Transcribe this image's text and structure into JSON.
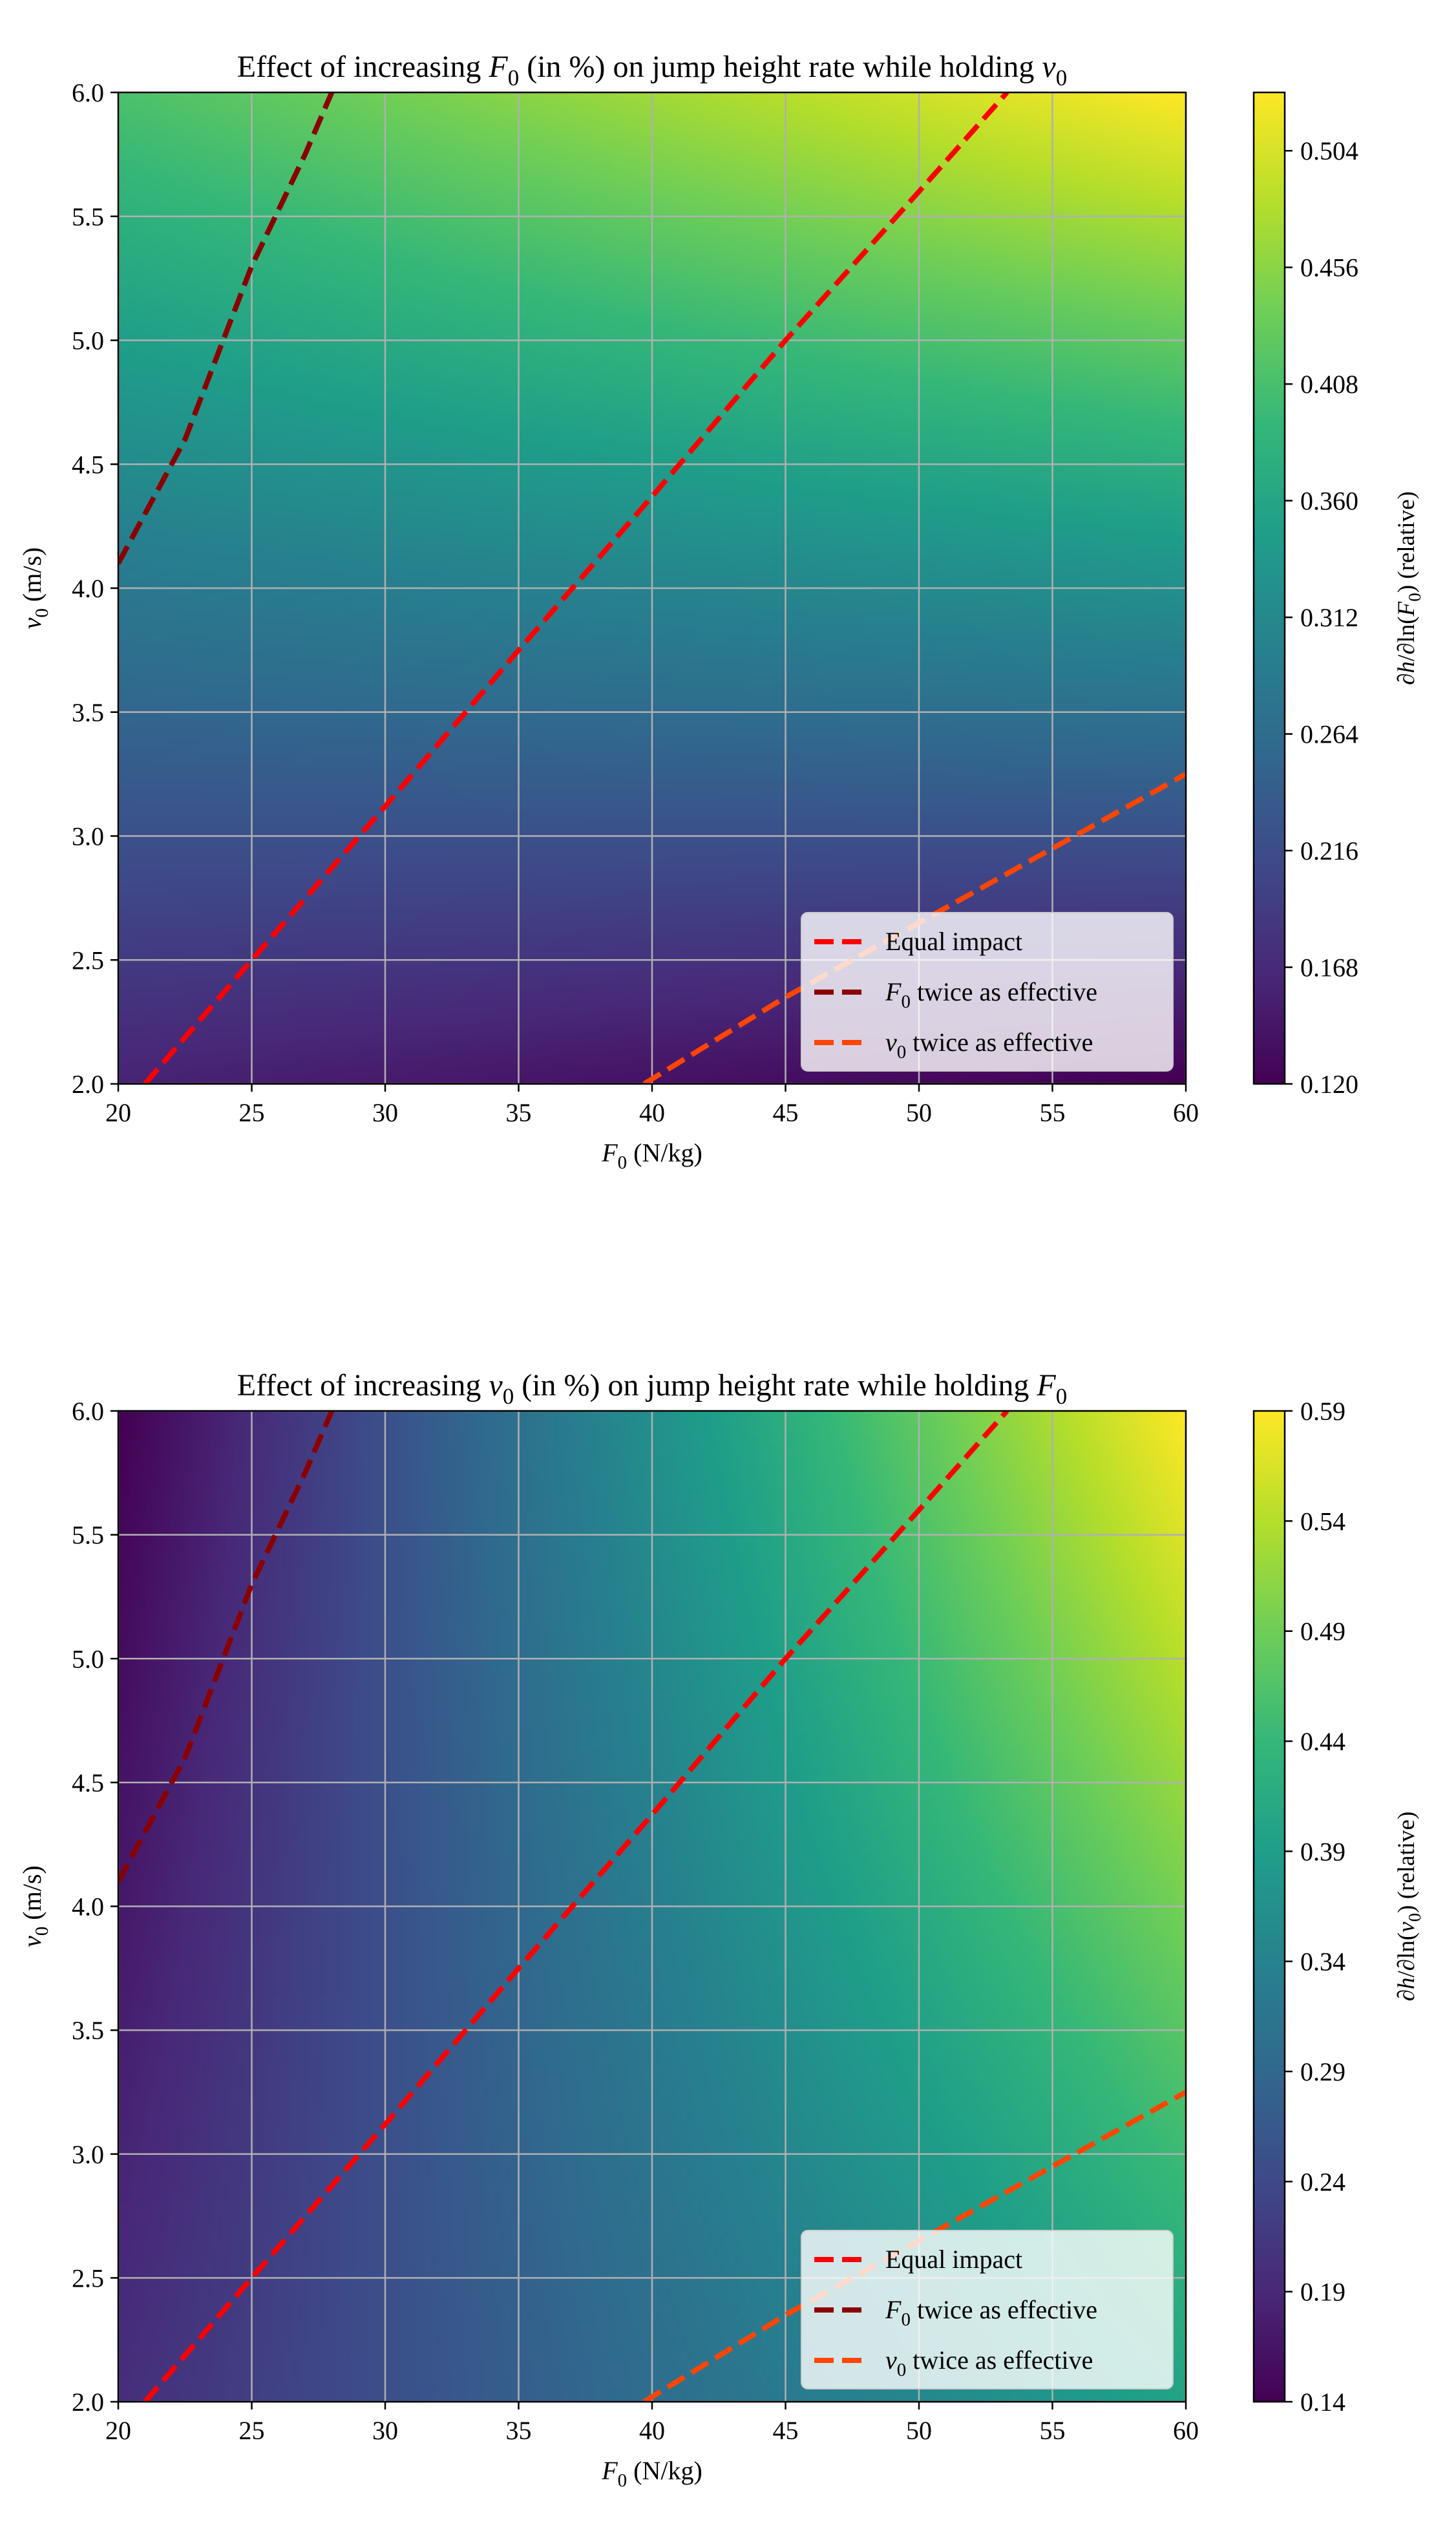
{
  "chart_data": [
    {
      "type": "heatmap",
      "title": "Effect of increasing F0 (in %) on jump height rate while holding v0",
      "title_parts": [
        "Effect of increasing ",
        "F",
        "0",
        " (in %) on jump height rate while holding ",
        "v",
        "0"
      ],
      "xlabel": "F0 (N/kg)",
      "xlabel_parts": [
        "F",
        "0",
        " (N/kg)"
      ],
      "ylabel": "v0 (m/s)",
      "ylabel_parts": [
        "v",
        "0",
        " (m/s)"
      ],
      "colorbar_label": "∂h/∂ln(F0) (relative)",
      "colorbar_parts": [
        "∂",
        "h",
        "/∂ln(",
        "F",
        "0",
        ") (relative)"
      ],
      "xlim": [
        20,
        60
      ],
      "ylim": [
        2.0,
        6.0
      ],
      "xticks": [
        "20",
        "25",
        "30",
        "35",
        "40",
        "45",
        "50",
        "55",
        "60"
      ],
      "yticks": [
        "2.0",
        "2.5",
        "3.0",
        "3.5",
        "4.0",
        "4.5",
        "5.0",
        "5.5",
        "6.0"
      ],
      "colorbar_range": [
        0.12,
        0.528
      ],
      "colorbar_ticks": [
        "0.120",
        "0.168",
        "0.216",
        "0.264",
        "0.312",
        "0.360",
        "0.408",
        "0.456",
        "0.504"
      ],
      "colormap": "viridis",
      "grid": true,
      "legend_position": "lower-right",
      "corner_values": {
        "F0_20_v0_2": 0.16,
        "F0_60_v0_2": 0.12,
        "F0_20_v0_6": 0.41,
        "F0_60_v0_6": 0.528
      },
      "series": [
        {
          "name": "Equal impact",
          "name_parts": [
            "Equal impact"
          ],
          "color": "#ff0000",
          "x": [
            21.0,
            25.0,
            30.0,
            35.0,
            40.0,
            45.0,
            50.0,
            53.3
          ],
          "y": [
            2.0,
            2.5,
            3.12,
            3.75,
            4.37,
            5.0,
            5.6,
            6.0
          ]
        },
        {
          "name": "F0 twice as effective",
          "name_parts": [
            "",
            "F",
            "0",
            " twice as effective"
          ],
          "color": "#8b0000",
          "x": [
            20.0,
            22.5,
            25.0,
            27.0,
            28.0
          ],
          "y": [
            4.1,
            4.6,
            5.3,
            5.75,
            6.0
          ]
        },
        {
          "name": "v0 twice as effective",
          "name_parts": [
            "",
            "v",
            "0",
            " twice as effective"
          ],
          "color": "#ff4500",
          "x": [
            39.7,
            45.0,
            50.0,
            55.0,
            60.0
          ],
          "y": [
            2.0,
            2.35,
            2.65,
            2.95,
            3.25
          ]
        }
      ]
    },
    {
      "type": "heatmap",
      "title": "Effect of increasing v0 (in %) on jump height rate while holding F0",
      "title_parts": [
        "Effect of increasing ",
        "v",
        "0",
        " (in %) on jump height rate while holding ",
        "F",
        "0"
      ],
      "xlabel": "F0 (N/kg)",
      "xlabel_parts": [
        "F",
        "0",
        " (N/kg)"
      ],
      "ylabel": "v0 (m/s)",
      "ylabel_parts": [
        "v",
        "0",
        " (m/s)"
      ],
      "colorbar_label": "∂h/∂ln(v0) (relative)",
      "colorbar_parts": [
        "∂",
        "h",
        "/∂ln(",
        "v",
        "0",
        ") (relative)"
      ],
      "xlim": [
        20,
        60
      ],
      "ylim": [
        2.0,
        6.0
      ],
      "xticks": [
        "20",
        "25",
        "30",
        "35",
        "40",
        "45",
        "50",
        "55",
        "60"
      ],
      "yticks": [
        "2.0",
        "2.5",
        "3.0",
        "3.5",
        "4.0",
        "4.5",
        "5.0",
        "5.5",
        "6.0"
      ],
      "colorbar_range": [
        0.14,
        0.59
      ],
      "colorbar_ticks": [
        "0.14",
        "0.19",
        "0.24",
        "0.29",
        "0.34",
        "0.39",
        "0.44",
        "0.49",
        "0.54",
        "0.59"
      ],
      "colormap": "viridis",
      "grid": true,
      "legend_position": "lower-right",
      "corner_values": {
        "F0_20_v0_2": 0.2,
        "F0_60_v0_2": 0.4,
        "F0_20_v0_6": 0.14,
        "F0_60_v0_6": 0.59
      },
      "series": [
        {
          "name": "Equal impact",
          "name_parts": [
            "Equal impact"
          ],
          "color": "#ff0000",
          "x": [
            21.0,
            25.0,
            30.0,
            35.0,
            40.0,
            45.0,
            50.0,
            53.3
          ],
          "y": [
            2.0,
            2.5,
            3.12,
            3.75,
            4.37,
            5.0,
            5.6,
            6.0
          ]
        },
        {
          "name": "F0 twice as effective",
          "name_parts": [
            "",
            "F",
            "0",
            " twice as effective"
          ],
          "color": "#8b0000",
          "x": [
            20.0,
            22.5,
            25.0,
            27.0,
            28.0
          ],
          "y": [
            4.1,
            4.6,
            5.3,
            5.75,
            6.0
          ]
        },
        {
          "name": "v0 twice as effective",
          "name_parts": [
            "",
            "v",
            "0",
            " twice as effective"
          ],
          "color": "#ff4500",
          "x": [
            39.7,
            45.0,
            50.0,
            55.0,
            60.0
          ],
          "y": [
            2.0,
            2.35,
            2.65,
            2.95,
            3.25
          ]
        }
      ]
    }
  ]
}
